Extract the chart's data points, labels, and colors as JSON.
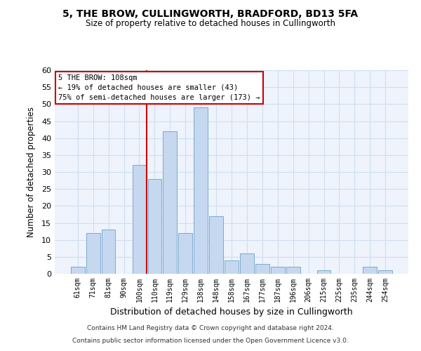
{
  "title": "5, THE BROW, CULLINGWORTH, BRADFORD, BD13 5FA",
  "subtitle": "Size of property relative to detached houses in Cullingworth",
  "xlabel": "Distribution of detached houses by size in Cullingworth",
  "ylabel": "Number of detached properties",
  "footnote1": "Contains HM Land Registry data © Crown copyright and database right 2024.",
  "footnote2": "Contains public sector information licensed under the Open Government Licence v3.0.",
  "annotation_line1": "5 THE BROW: 108sqm",
  "annotation_line2": "← 19% of detached houses are smaller (43)",
  "annotation_line3": "75% of semi-detached houses are larger (173) →",
  "bar_labels": [
    "61sqm",
    "71sqm",
    "81sqm",
    "90sqm",
    "100sqm",
    "110sqm",
    "119sqm",
    "129sqm",
    "138sqm",
    "148sqm",
    "158sqm",
    "167sqm",
    "177sqm",
    "187sqm",
    "196sqm",
    "206sqm",
    "215sqm",
    "225sqm",
    "235sqm",
    "244sqm",
    "254sqm"
  ],
  "bar_values": [
    2,
    12,
    13,
    0,
    32,
    28,
    42,
    12,
    49,
    17,
    4,
    6,
    3,
    2,
    2,
    0,
    1,
    0,
    0,
    2,
    1
  ],
  "bar_color": "#c5d8f0",
  "bar_edge_color": "#7aaad0",
  "vline_x_index": 4,
  "vline_color": "#cc0000",
  "ylim": [
    0,
    60
  ],
  "yticks": [
    0,
    5,
    10,
    15,
    20,
    25,
    30,
    35,
    40,
    45,
    50,
    55,
    60
  ],
  "grid_color": "#d0dff0",
  "bg_color": "#eef3fc",
  "annotation_box_color": "#cc0000",
  "figsize": [
    6.0,
    5.0
  ],
  "dpi": 100
}
